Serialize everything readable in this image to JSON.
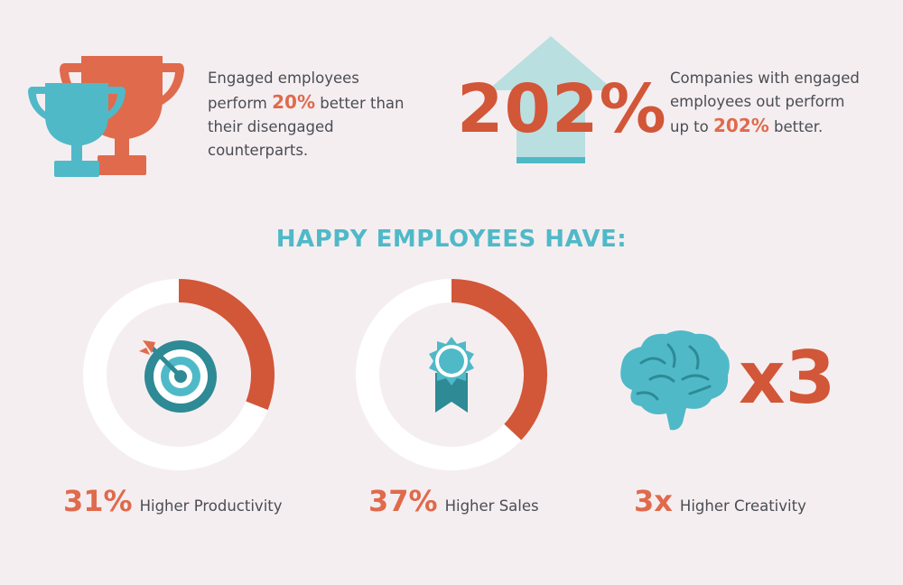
{
  "stat_1": {
    "text_pre": "Engaged employees",
    "text_mid_pre": "perform ",
    "highlight": "20%",
    "text_mid_post": " better than",
    "text_post_1": "their disengaged",
    "text_post_2": "counterparts.",
    "icon": "trophy-icon"
  },
  "stat_2": {
    "big_value": "202%",
    "line_1": "Companies with engaged",
    "line_2": "employees out perform",
    "line_3_pre": "up to ",
    "highlight": "202%",
    "line_3_post": " better.",
    "icon": "up-arrow-icon"
  },
  "heading": "HAPPY EMPLOYEES HAVE:",
  "benefits": [
    {
      "value": "31%",
      "label": "Higher Productivity",
      "fraction": 0.31,
      "icon": "target-icon"
    },
    {
      "value": "37%",
      "label": "Higher Sales",
      "fraction": 0.37,
      "icon": "award-ribbon-icon"
    },
    {
      "value": "3x",
      "label": "Higher Creativity",
      "icon": "brain-icon",
      "multiplier": "x3"
    }
  ],
  "colors": {
    "background": "#f5eef0",
    "coral": "#e06a4c",
    "coral_dark": "#d25638",
    "teal": "#4fb9c8",
    "teal_dark": "#2e8a95",
    "arrow_light": "#b9dfe0",
    "text": "#4a4d54"
  }
}
